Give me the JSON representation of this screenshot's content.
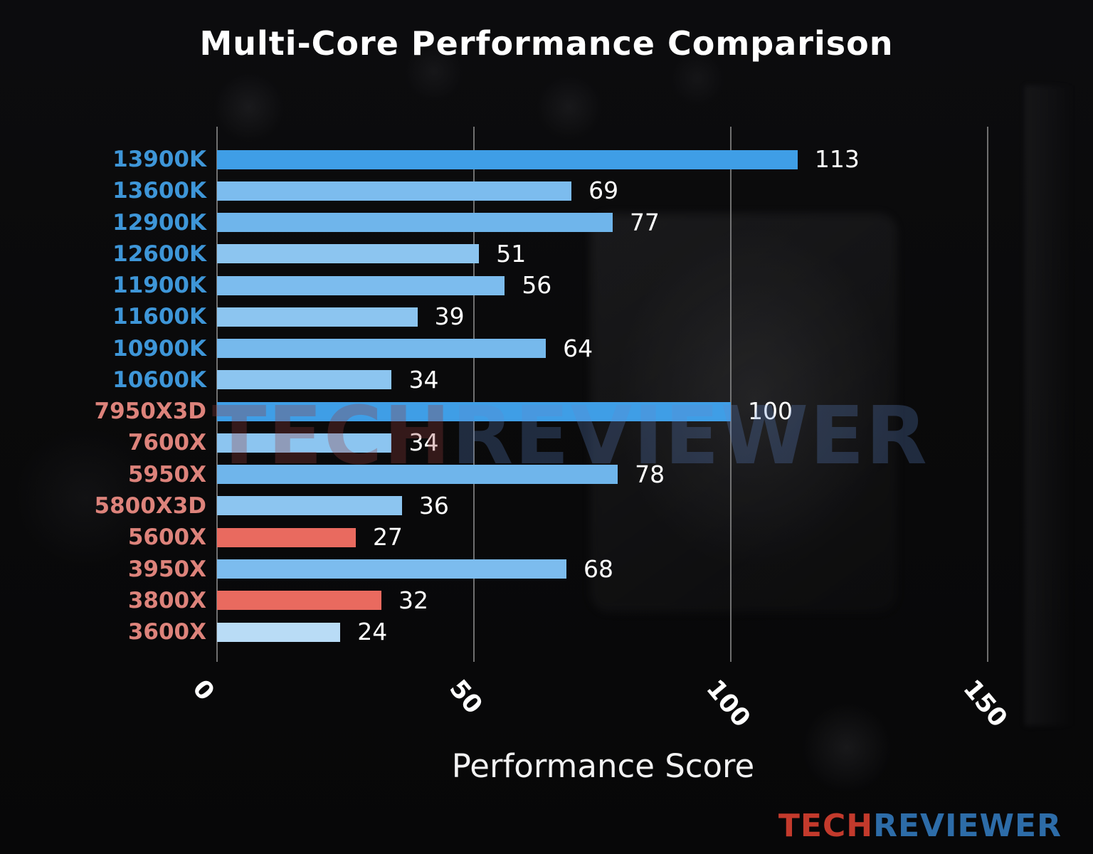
{
  "chart_data": {
    "type": "bar",
    "orientation": "horizontal",
    "title": "Multi-Core Performance Comparison",
    "xlabel": "Performance Score",
    "xlim": [
      0,
      150
    ],
    "xticks": [
      0,
      50,
      100,
      150
    ],
    "grid": "vertical-gray-lines",
    "legend": "none",
    "bars": [
      {
        "label": "13900K",
        "value": 113,
        "bar_color": "#3f9ee6",
        "label_color": "#3e96d8"
      },
      {
        "label": "13600K",
        "value": 69,
        "bar_color": "#7cbcee",
        "label_color": "#3e96d8"
      },
      {
        "label": "12900K",
        "value": 77,
        "bar_color": "#6fb5eb",
        "label_color": "#3e96d8"
      },
      {
        "label": "12600K",
        "value": 51,
        "bar_color": "#8cc5f0",
        "label_color": "#3e96d8"
      },
      {
        "label": "11900K",
        "value": 56,
        "bar_color": "#7cbcee",
        "label_color": "#3e96d8"
      },
      {
        "label": "11600K",
        "value": 39,
        "bar_color": "#8cc5f0",
        "label_color": "#3e96d8"
      },
      {
        "label": "10900K",
        "value": 64,
        "bar_color": "#76b9ec",
        "label_color": "#3e96d8"
      },
      {
        "label": "10600K",
        "value": 34,
        "bar_color": "#8cc5f0",
        "label_color": "#3e96d8"
      },
      {
        "label": "7950X3D",
        "value": 100,
        "bar_color": "#3f9ee6",
        "label_color": "#dd837b"
      },
      {
        "label": "7600X",
        "value": 34,
        "bar_color": "#8cc5f0",
        "label_color": "#dd837b"
      },
      {
        "label": "5950X",
        "value": 78,
        "bar_color": "#6fb5eb",
        "label_color": "#dd837b"
      },
      {
        "label": "5800X3D",
        "value": 36,
        "bar_color": "#8cc5f0",
        "label_color": "#dd837b"
      },
      {
        "label": "5600X",
        "value": 27,
        "bar_color": "#e96a5f",
        "label_color": "#dd837b"
      },
      {
        "label": "3950X",
        "value": 68,
        "bar_color": "#7cbcee",
        "label_color": "#dd837b"
      },
      {
        "label": "3800X",
        "value": 32,
        "bar_color": "#e96a5f",
        "label_color": "#dd837b"
      },
      {
        "label": "3600X",
        "value": 24,
        "bar_color": "#b9dcf6",
        "label_color": "#dd837b"
      }
    ]
  },
  "watermark": {
    "part1": "TECH",
    "part2": "REVIEWER"
  },
  "logo": {
    "part1": "TECH",
    "part2": "REVIEWER",
    "part1_color": "#c33a2c",
    "part2_color": "#2d6ca8"
  }
}
